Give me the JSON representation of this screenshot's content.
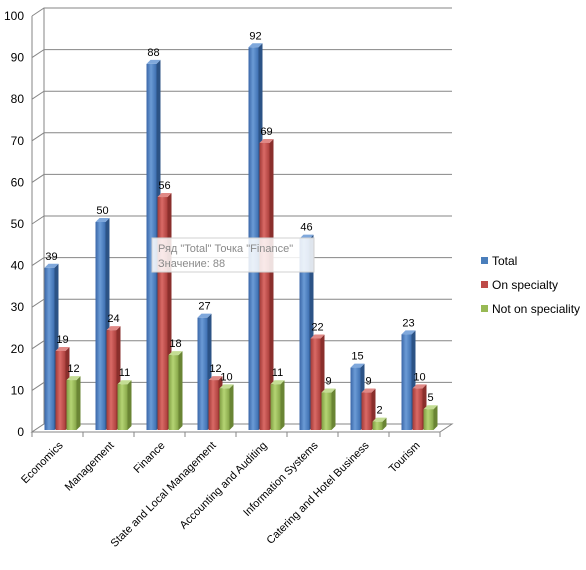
{
  "chart_data": {
    "type": "bar",
    "title": "",
    "xlabel": "",
    "ylabel": "",
    "ylim": [
      0,
      100
    ],
    "ytick_step": 10,
    "grid": true,
    "legend_position": "right",
    "categories": [
      "Economics",
      "Management",
      "Finance",
      "State and Local Management",
      "Accounting and Auditing",
      "Information Systems",
      "Catering and Hotel Business",
      "Tourism"
    ],
    "series": [
      {
        "name": "Total",
        "values": [
          39,
          50,
          88,
          27,
          92,
          46,
          15,
          23
        ],
        "color": "#4a7ebb"
      },
      {
        "name": "On specialty",
        "values": [
          19,
          24,
          56,
          12,
          69,
          22,
          9,
          10
        ],
        "color": "#be4b48"
      },
      {
        "name": "Not on speciality",
        "values": [
          12,
          11,
          18,
          10,
          11,
          9,
          2,
          5
        ],
        "color": "#98b954"
      }
    ]
  },
  "tooltip": {
    "line1": "Ряд \"Total\" Точка \"Finance\"",
    "line2": "Значение: 88"
  }
}
